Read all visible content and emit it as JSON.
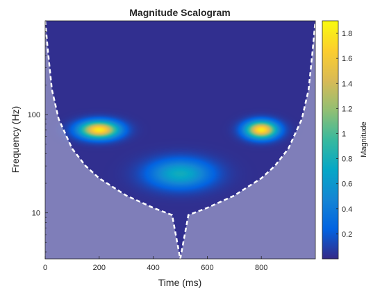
{
  "chart_data": {
    "type": "heatmap",
    "title": "Magnitude Scalogram",
    "xlabel": "Time (ms)",
    "ylabel": "Frequency (Hz)",
    "xlim": [
      0,
      1000
    ],
    "ylim": [
      3.4,
      900
    ],
    "yscale": "log",
    "x_ticks": [
      0,
      200,
      400,
      600,
      800
    ],
    "y_ticks": [
      10,
      100
    ],
    "colormap": "parula",
    "colorbar": {
      "label": "Magnitude",
      "range": [
        0.0,
        1.9
      ],
      "ticks": [
        0.2,
        0.4,
        0.6,
        0.8,
        1.0,
        1.2,
        1.4,
        1.6,
        1.8
      ],
      "tick_labels": [
        "0.2",
        "0.4",
        "0.6",
        "0.8",
        "1",
        "1.2",
        "1.4",
        "1.6",
        "1.8"
      ]
    },
    "components": [
      {
        "time_ms": 200,
        "frequency_hz": 70,
        "peak_magnitude": 1.8,
        "time_spread_ms": 50,
        "log10_freq_spread": 0.06
      },
      {
        "time_ms": 800,
        "frequency_hz": 70,
        "peak_magnitude": 1.8,
        "time_spread_ms": 40,
        "log10_freq_spread": 0.06
      },
      {
        "time_ms": 500,
        "frequency_hz": 25,
        "peak_magnitude": 0.75,
        "time_spread_ms": 80,
        "log10_freq_spread": 0.1
      }
    ],
    "background_magnitude": 0.02,
    "cone_of_influence": {
      "style": "white dashed line, shaded outside",
      "points": [
        [
          0,
          900
        ],
        [
          10,
          450
        ],
        [
          25,
          180
        ],
        [
          50,
          90
        ],
        [
          100,
          45
        ],
        [
          150,
          30
        ],
        [
          200,
          22.5
        ],
        [
          300,
          15
        ],
        [
          400,
          11.25
        ],
        [
          470,
          9.5
        ],
        [
          500,
          3.4
        ],
        [
          530,
          9.5
        ],
        [
          600,
          11.25
        ],
        [
          700,
          15
        ],
        [
          800,
          22.5
        ],
        [
          850,
          30
        ],
        [
          900,
          45
        ],
        [
          950,
          90
        ],
        [
          975,
          180
        ],
        [
          990,
          450
        ],
        [
          1000,
          900
        ]
      ]
    }
  }
}
